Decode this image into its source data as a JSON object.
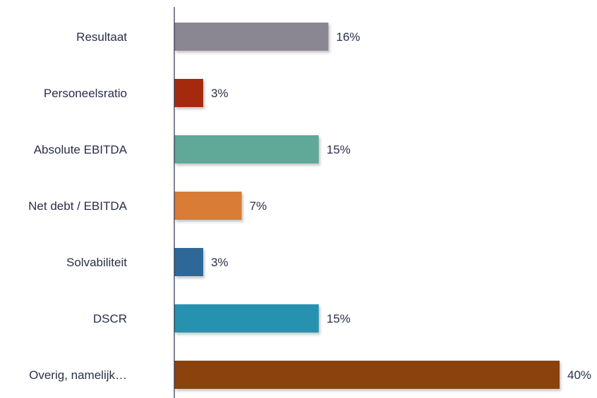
{
  "chart_data": {
    "type": "bar",
    "orientation": "horizontal",
    "title": "",
    "xlabel": "",
    "ylabel": "",
    "xlim": [
      0,
      40
    ],
    "grid": false,
    "legend": "none",
    "categories": [
      "Resultaat",
      "Personeelsratio",
      "Absolute EBITDA",
      "Net debt / EBITDA",
      "Solvabiliteit",
      "DSCR",
      "Overig, namelijk…"
    ],
    "values": [
      16,
      3,
      15,
      7,
      3,
      15,
      40
    ],
    "value_labels": [
      "16%",
      "3%",
      "15%",
      "7%",
      "3%",
      "15%",
      "40%"
    ],
    "colors": [
      "#8b8792",
      "#a52a0a",
      "#61a898",
      "#d97b35",
      "#2f6898",
      "#2592b0",
      "#8b4209"
    ]
  }
}
